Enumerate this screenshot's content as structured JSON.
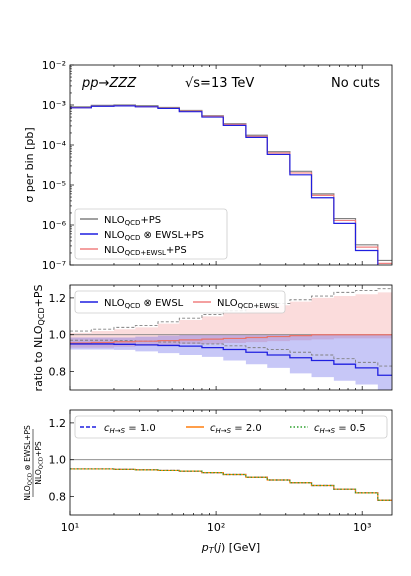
{
  "panels": {
    "top": {
      "process": "pp→ZZZ",
      "energy": "√s=13 TeV",
      "cuts": "No cuts",
      "ylabel": "σ per bin [pb]",
      "yticks": [
        "10⁻²",
        "10⁻³",
        "10⁻⁴",
        "10⁻⁵",
        "10⁻⁶",
        "10⁻⁷"
      ],
      "legend": [
        {
          "label": "NLO_QCD+PS",
          "color": "#808080"
        },
        {
          "label": "NLO_QCD ⊗ EWSL+PS",
          "color": "#1f1fe0"
        },
        {
          "label": "NLO_QCD+EWSL+PS",
          "color": "#f08080"
        }
      ]
    },
    "middle": {
      "ylabel": "ratio to NLO_QCD+PS",
      "yticks": [
        "1.2",
        "1.0",
        "0.8"
      ],
      "legend": [
        {
          "label": "NLO_QCD ⊗ EWSL",
          "color": "#1f1fe0"
        },
        {
          "label": "NLO_QCD+EWSL",
          "color": "#f08080"
        }
      ]
    },
    "bottom": {
      "ylabel_num": "NLO_QCD ⊗ EWSL+PS",
      "ylabel_den": "NLO_QCD+PS",
      "yticks": [
        "1.2",
        "1.0",
        "0.8"
      ],
      "legend": [
        {
          "label": "c_H→S = 1.0",
          "color": "#1f1fe0"
        },
        {
          "label": "c_H→S = 2.0",
          "color": "#ff7f0e"
        },
        {
          "label": "c_H→S = 0.5",
          "color": "#2ca02c"
        }
      ]
    }
  },
  "xaxis": {
    "label": "p_T(j) [GeV]",
    "ticks": [
      "10¹",
      "10²",
      "10³"
    ]
  },
  "chart_data": [
    {
      "type": "step",
      "title": "",
      "xlabel": "p_T(j) [GeV]",
      "ylabel": "σ per bin [pb]",
      "xscale": "log",
      "yscale": "log",
      "xlim": [
        10,
        1600
      ],
      "ylim": [
        1e-07,
        0.01
      ],
      "bin_edges": [
        10,
        14,
        20,
        28,
        40,
        56,
        80,
        112,
        160,
        224,
        320,
        450,
        640,
        900,
        1280,
        1600
      ],
      "series": [
        {
          "name": "NLO_QCD+PS",
          "color": "#808080",
          "values": [
            0.0009,
            0.00098,
            0.001,
            0.00096,
            0.00087,
            0.00073,
            0.00054,
            0.00034,
            0.000175,
            6.8e-05,
            2.2e-05,
            6e-06,
            1.45e-06,
            3.2e-07,
            1.3e-07
          ]
        },
        {
          "name": "NLO_QCD ⊗ EWSL+PS",
          "color": "#1f1fe0",
          "values": [
            0.00085,
            0.00093,
            0.00095,
            0.0009,
            0.00082,
            0.00068,
            0.0005,
            0.00031,
            0.000155,
            5.8e-05,
            1.8e-05,
            4.8e-06,
            1.1e-06,
            2.3e-07,
            9e-08
          ]
        },
        {
          "name": "NLO_QCD+EWSL+PS",
          "color": "#f08080",
          "values": [
            0.00086,
            0.00094,
            0.00096,
            0.00091,
            0.00083,
            0.0007,
            0.00052,
            0.000325,
            0.000165,
            6.3e-05,
            2e-05,
            5.5e-06,
            1.3e-06,
            2.8e-07,
            1.1e-07
          ]
        }
      ]
    },
    {
      "type": "step",
      "xlabel": "p_T(j) [GeV]",
      "ylabel": "ratio to NLO_QCD+PS",
      "xscale": "log",
      "xlim": [
        10,
        1600
      ],
      "ylim": [
        0.7,
        1.27
      ],
      "reference_line": 1.0,
      "bin_edges": [
        10,
        14,
        20,
        28,
        40,
        56,
        80,
        112,
        160,
        224,
        320,
        450,
        640,
        900,
        1280,
        1600
      ],
      "series": [
        {
          "name": "NLO_QCD ⊗ EWSL",
          "color": "#1f1fe0",
          "values": [
            0.95,
            0.95,
            0.948,
            0.945,
            0.942,
            0.938,
            0.93,
            0.92,
            0.905,
            0.89,
            0.875,
            0.86,
            0.84,
            0.82,
            0.78
          ],
          "band_low": [
            0.92,
            0.92,
            0.918,
            0.91,
            0.9,
            0.89,
            0.88,
            0.86,
            0.84,
            0.82,
            0.79,
            0.77,
            0.75,
            0.73,
            0.7
          ],
          "band_high": [
            0.985,
            0.985,
            0.985,
            0.99,
            0.995,
            1.0,
            1.0,
            1.0,
            1.0,
            1.0,
            1.0,
            1.0,
            1.0,
            1.0,
            1.0
          ]
        },
        {
          "name": "NLO_QCD+EWSL",
          "color": "#f08080",
          "values": [
            0.955,
            0.958,
            0.962,
            0.965,
            0.968,
            0.972,
            0.976,
            0.98,
            0.985,
            0.99,
            0.995,
            1.0,
            1.0,
            1.0,
            1.0
          ],
          "band_low": [
            0.93,
            0.93,
            0.935,
            0.94,
            0.94,
            0.95,
            0.95,
            0.955,
            0.96,
            0.965,
            0.97,
            0.975,
            0.98,
            0.98,
            0.98
          ],
          "band_high": [
            1.01,
            1.02,
            1.03,
            1.04,
            1.06,
            1.08,
            1.1,
            1.12,
            1.14,
            1.16,
            1.18,
            1.2,
            1.21,
            1.22,
            1.23
          ]
        },
        {
          "name": "NLO_QCD+PS scale band",
          "color": "#808080",
          "style": "dashed",
          "band_low": [
            0.97,
            0.97,
            0.968,
            0.965,
            0.96,
            0.955,
            0.95,
            0.94,
            0.93,
            0.92,
            0.905,
            0.89,
            0.87,
            0.85,
            0.83
          ],
          "band_high": [
            1.02,
            1.03,
            1.04,
            1.05,
            1.07,
            1.09,
            1.11,
            1.13,
            1.15,
            1.17,
            1.19,
            1.21,
            1.23,
            1.24,
            1.25
          ]
        }
      ]
    },
    {
      "type": "step",
      "xlabel": "p_T(j) [GeV]",
      "ylabel": "NLO_QCD ⊗ EWSL+PS / NLO_QCD+PS",
      "xscale": "log",
      "xlim": [
        10,
        1600
      ],
      "ylim": [
        0.7,
        1.27
      ],
      "reference_line": 1.0,
      "bin_edges": [
        10,
        14,
        20,
        28,
        40,
        56,
        80,
        112,
        160,
        224,
        320,
        450,
        640,
        900,
        1280,
        1600
      ],
      "series": [
        {
          "name": "c_H→S = 1.0",
          "color": "#1f1fe0",
          "style": "dashed",
          "values": [
            0.95,
            0.95,
            0.948,
            0.945,
            0.942,
            0.938,
            0.93,
            0.92,
            0.905,
            0.89,
            0.875,
            0.86,
            0.84,
            0.82,
            0.78
          ]
        },
        {
          "name": "c_H→S = 2.0",
          "color": "#ff7f0e",
          "style": "solid",
          "values": [
            0.95,
            0.95,
            0.948,
            0.945,
            0.942,
            0.938,
            0.93,
            0.92,
            0.905,
            0.89,
            0.875,
            0.86,
            0.84,
            0.82,
            0.78
          ]
        },
        {
          "name": "c_H→S = 0.5",
          "color": "#2ca02c",
          "style": "dotted",
          "values": [
            0.95,
            0.95,
            0.948,
            0.945,
            0.942,
            0.938,
            0.93,
            0.92,
            0.905,
            0.89,
            0.875,
            0.86,
            0.84,
            0.82,
            0.78
          ]
        }
      ]
    }
  ]
}
